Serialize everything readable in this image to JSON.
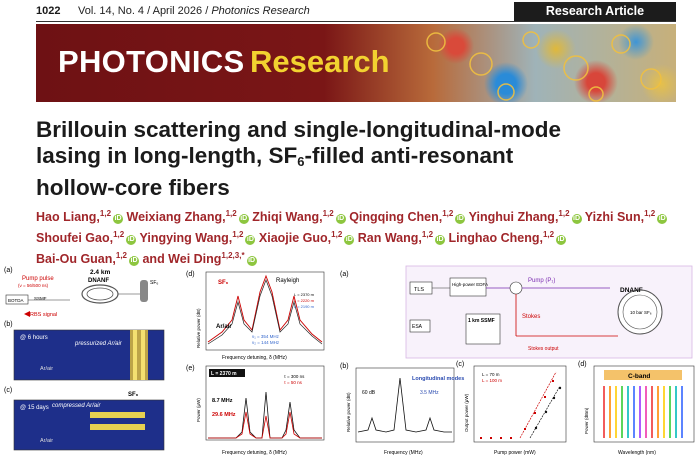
{
  "header": {
    "page_number": "1022",
    "volume_issue": "Vol. 14, No. 4 / April 2026 / ",
    "journal": "Photonics Research",
    "article_type": "Research Article"
  },
  "banner": {
    "word1": "PHOTONICS",
    "word2": "Research"
  },
  "title": {
    "line1": "Brillouin scattering and single-longitudinal-mode",
    "line2": "lasing in long-length, SF",
    "line2_sub": "6",
    "line2_end": "-filled anti-resonant",
    "line3": "hollow-core fibers"
  },
  "authors_line1": [
    {
      "name": "Hao Liang,",
      "aff": "1,2"
    },
    {
      "name": "Weixiang Zhang,",
      "aff": "1,2"
    },
    {
      "name": "Zhiqi Wang,",
      "aff": "1,2"
    },
    {
      "name": "Qingqing Chen,",
      "aff": "1,2"
    },
    {
      "name": "Yinghui Zhang,",
      "aff": "1,2"
    },
    {
      "name": "Yizhi Sun,",
      "aff": "1,2"
    }
  ],
  "authors_line2": [
    {
      "name": "Shoufei Gao,",
      "aff": "1,2"
    },
    {
      "name": "Yingying Wang,",
      "aff": "1,2"
    },
    {
      "name": "Xiaojie Guo,",
      "aff": "1,2"
    },
    {
      "name": "Ran Wang,",
      "aff": "1,2"
    },
    {
      "name": "Linghao Cheng,",
      "aff": "1,2"
    }
  ],
  "authors_line3": [
    {
      "name": "Bai-Ou Guan,",
      "aff": "1,2"
    },
    {
      "name": "and Wei Ding",
      "aff": "1,2,3,*"
    }
  ],
  "orcid_glyph": "iD",
  "figure": {
    "a_label": "(a)",
    "a_pump": "Pump pulse",
    "a_pump_spec": "(ν = 56/500 ns)",
    "a_fiber": "2.4 km",
    "a_fiber_name": "DNANF",
    "a_botda": "BOTDA",
    "a_ssmf": "SSMF",
    "a_rbs": "RBS signal",
    "a_sf6": "SF₆",
    "b_label": "(b)",
    "b_time": "@ 6 hours",
    "b_text": "pressurized Ar/air",
    "b_air": "Ar/air",
    "c_label": "(c)",
    "c_time": "@ 15 days",
    "c_text": "compressed Ar/air",
    "c_sf6": "SF₆",
    "c_air": "Ar/air",
    "d_label": "(d)",
    "d_sf6": "SF₆",
    "d_rayleigh": "Rayleigh",
    "d_legend": [
      "L = 2370 m",
      "L = 2220 m",
      "L = 2190 m"
    ],
    "d_arair": "Ar/air",
    "d_ylabel": "Relative power (dB)",
    "d_xlabel": "Frequency detuning, δ (MHz)",
    "d_nu1": "ν₁ = 354 MHz",
    "d_nu2": "ν₂ = 144 MHz",
    "e_label": "(e)",
    "e_L": "L = 2370 m",
    "e_87": "8.7 MHz",
    "e_296": "29.6 MHz",
    "e_legend": [
      "τ = 300 ns",
      "τ = 50 ns"
    ],
    "e_ylabel": "Power (μW)",
    "e_xlabel": "Frequency detuning, δ (MHz)",
    "a2_label": "(a)",
    "a2_tls": "TLS",
    "a2_edfa": "High-power EDFA",
    "a2_pump": "Pump (P₁)",
    "a2_dnanf": "DNANF",
    "a2_ssmf": "1 km SSMF",
    "a2_esa": "ESA",
    "a2_stokes": "Stokes",
    "a2_stokes_out": "Stokes output",
    "a2_coil": "10 bar SF₆",
    "b2_label": "(b)",
    "b2_60db": "60 dB",
    "b2_modes": "Longitudinal modes",
    "b2_spacing": "3.5 MHz",
    "b2_ylabel": "Relative power (dB)",
    "b2_xlabel": "Frequency (MHz)",
    "c2_label": "(c)",
    "c2_legend": [
      "L = 70 m",
      "L = 100 m"
    ],
    "c2_ylabel": "Output power (μW)",
    "c2_xlabel": "Pump power (mW)",
    "d2_label": "(d)",
    "d2_band": "C-band",
    "d2_ylabel": "Power (dBm)",
    "d2_xlabel": "Wavelength (nm)"
  }
}
